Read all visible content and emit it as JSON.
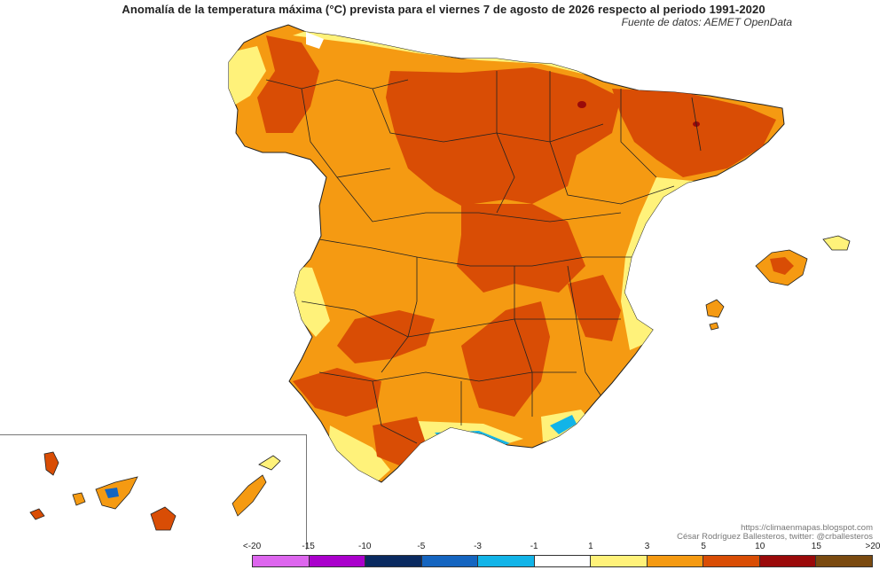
{
  "header": {
    "title": "Anomalía de la temperatura máxima (°C) prevista para el viernes 7 de agosto de 2026 respecto al periodo 1991-2020",
    "source": "Fuente de datos: AEMET OpenData"
  },
  "credits": {
    "url": "https://climaenmapas.blogspot.com",
    "author": "César Rodríguez Ballesteros, twitter: @crballesteros"
  },
  "legend": {
    "tick_labels": [
      "<-20",
      "-15",
      "-10",
      "-5",
      "-3",
      "-1",
      "1",
      "3",
      "5",
      "10",
      "15",
      ">20"
    ],
    "colors": [
      "#dd66ee",
      "#aa00cc",
      "#0a2a60",
      "#1565c0",
      "#12b4e8",
      "#ffffff",
      "#fff27a",
      "#f59a12",
      "#d94d05",
      "#9a0a0a",
      "#7a4a10"
    ]
  },
  "regions": {
    "peninsula": "mainland-spain",
    "balearic": "balearic-islands",
    "canary": "canary-islands"
  }
}
